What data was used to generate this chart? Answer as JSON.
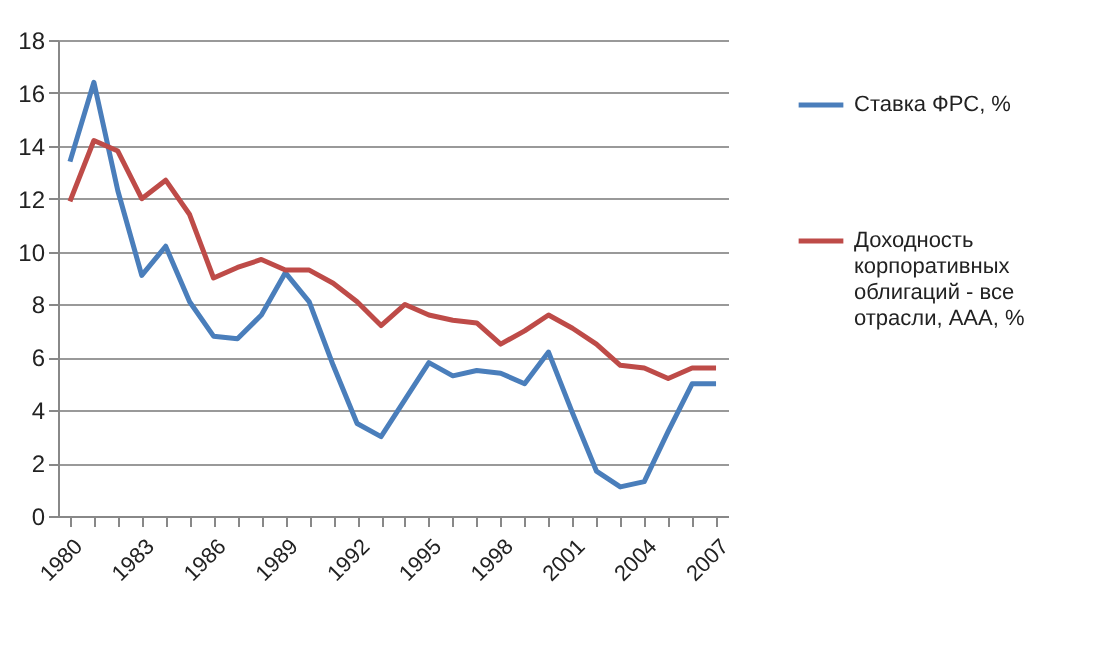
{
  "chart_data": {
    "type": "line",
    "categories": [
      "1980",
      null,
      null,
      "1983",
      null,
      null,
      "1986",
      null,
      null,
      "1989",
      null,
      null,
      "1992",
      null,
      null,
      "1995",
      null,
      null,
      "1998",
      null,
      null,
      "2001",
      null,
      null,
      "2004",
      null,
      null,
      "2007"
    ],
    "series": [
      {
        "name": "Ставка ФРС, %",
        "color": "#4a7ebb",
        "values": [
          13.4,
          16.4,
          12.3,
          9.1,
          10.2,
          8.1,
          6.8,
          6.7,
          7.6,
          9.2,
          8.1,
          5.7,
          3.5,
          3.0,
          4.4,
          5.8,
          5.3,
          5.5,
          5.4,
          5.0,
          6.2,
          3.9,
          1.7,
          1.1,
          1.3,
          3.2,
          5.0,
          5.0
        ]
      },
      {
        "name": "Доходность корпоративных облигаций - все отрасли, AAA, %",
        "color": "#be4b48",
        "values": [
          11.9,
          14.2,
          13.8,
          12.0,
          12.7,
          11.4,
          9.0,
          9.4,
          9.7,
          9.3,
          9.3,
          8.8,
          8.1,
          7.2,
          8.0,
          7.6,
          7.4,
          7.3,
          6.5,
          7.0,
          7.6,
          7.1,
          6.5,
          5.7,
          5.6,
          5.2,
          5.6,
          5.6
        ]
      }
    ],
    "ylim": [
      0,
      18
    ],
    "yticks": [
      0,
      2,
      4,
      6,
      8,
      10,
      12,
      14,
      16,
      18
    ],
    "grid": "y",
    "legend": "right",
    "marker": "none",
    "line_style": "solid"
  }
}
